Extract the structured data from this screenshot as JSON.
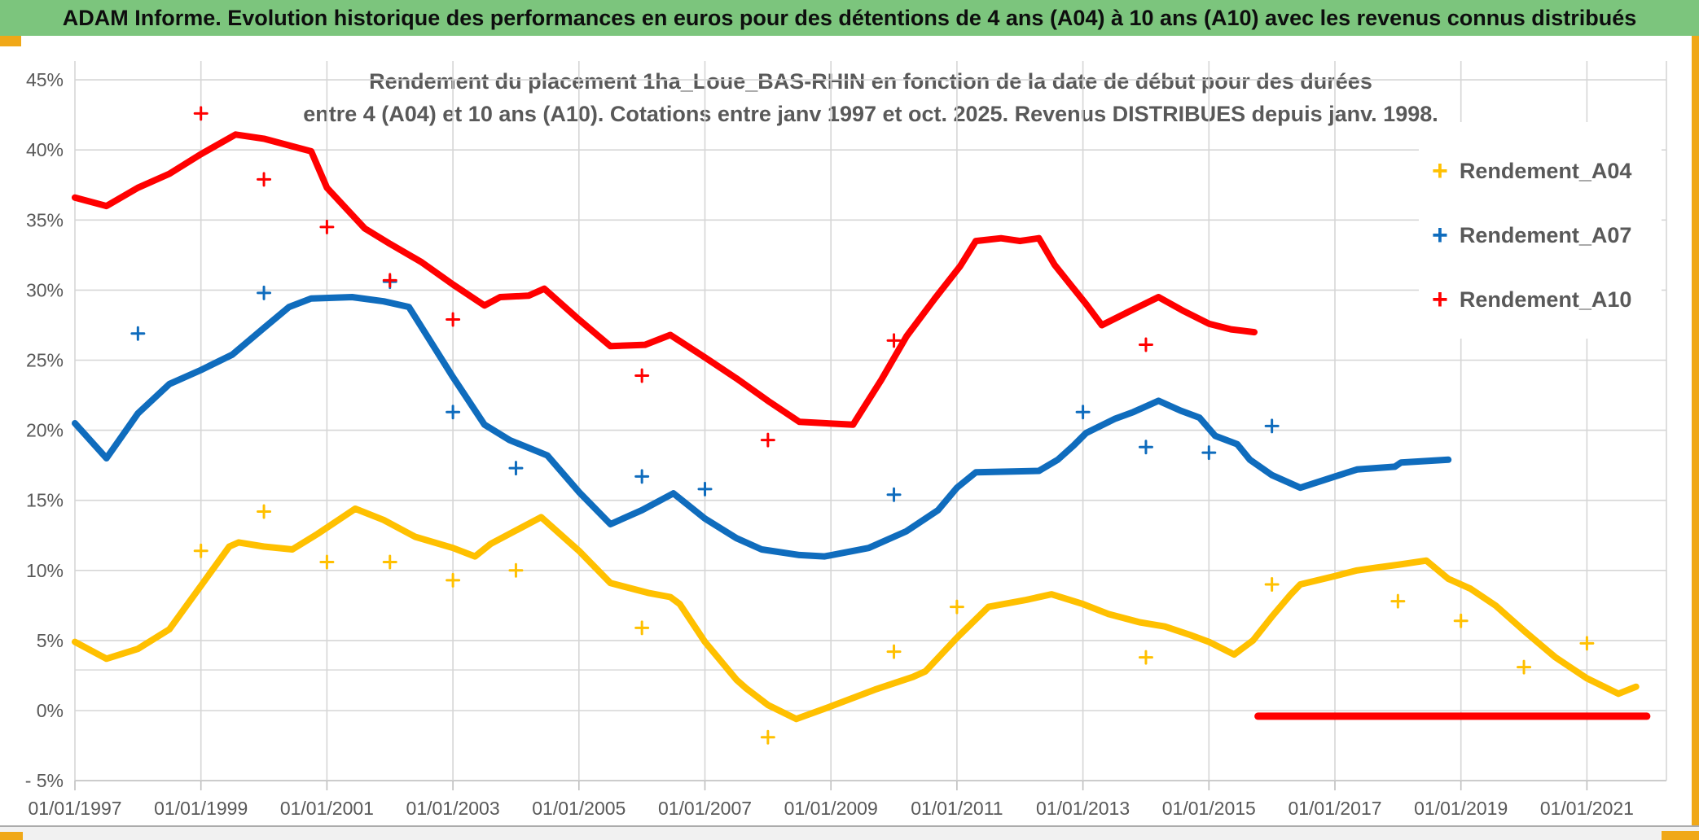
{
  "header": {
    "title": "ADAM Informe. Evolution historique des performances en euros pour des détentions de 4 ans (A04) à 10 ans (A10) avec les revenus connus distribués",
    "bg_color": "#7cc57d",
    "text_color": "#0e0e0e"
  },
  "frame": {
    "gold_color": "#f0a818"
  },
  "chart_data": {
    "type": "scatter",
    "title_line1": "Rendement du placement 1ha_Loue_BAS-RHIN en fonction de la date de début pour des durées",
    "title_line2": "entre 4 (A04) et 10 ans (A10). Cotations entre janv 1997 et oct. 2025. Revenus DISTRIBUES depuis janv. 1998.",
    "text_color": "#595959",
    "gridline_color": "#d6d6d6",
    "axis_line_color": "#bfbfbf",
    "x_axis": {
      "tick_years": [
        1997,
        1999,
        2001,
        2003,
        2005,
        2007,
        2009,
        2011,
        2013,
        2015,
        2017,
        2019,
        2021
      ],
      "tick_labels": [
        "01/01/1997",
        "01/01/1999",
        "01/01/2001",
        "01/01/2003",
        "01/01/2005",
        "01/01/2007",
        "01/01/2009",
        "01/01/2011",
        "01/01/2013",
        "01/01/2015",
        "01/01/2017",
        "01/01/2019",
        "01/01/2021"
      ],
      "min": 1997.0,
      "max": 2022.3
    },
    "y_axis": {
      "min": -5,
      "max": 45,
      "step": 5,
      "ticks": [
        {
          "v": 45,
          "label": "45%"
        },
        {
          "v": 40,
          "label": "40%"
        },
        {
          "v": 35,
          "label": "35%"
        },
        {
          "v": 30,
          "label": "30%"
        },
        {
          "v": 25,
          "label": "25%"
        },
        {
          "v": 20,
          "label": "20%"
        },
        {
          "v": 15,
          "label": "15%"
        },
        {
          "v": 10,
          "label": "10%"
        },
        {
          "v": 5,
          "label": "5%"
        },
        {
          "v": 0,
          "label": "0%"
        },
        {
          "v": -5,
          "label": "- 5%"
        }
      ]
    },
    "reference_line_v": 2.9,
    "legend": [
      {
        "label": "Rendement_A04",
        "color": "#ffc000"
      },
      {
        "label": "Rendement_A07",
        "color": "#0f6cbd"
      },
      {
        "label": "Rendement_A10",
        "color": "#ff0000"
      }
    ],
    "series": [
      {
        "name": "Rendement_A04",
        "color": "#ffc000",
        "points": [
          [
            1997.0,
            4.9
          ],
          [
            1997.5,
            3.7
          ],
          [
            1998.0,
            4.4
          ],
          [
            1998.5,
            5.8
          ],
          [
            1999.0,
            8.9
          ],
          [
            1999.45,
            11.7
          ],
          [
            1999.6,
            12.0
          ],
          [
            2000.0,
            11.7
          ],
          [
            2000.45,
            11.5
          ],
          [
            2000.85,
            12.6
          ],
          [
            2001.45,
            14.4
          ],
          [
            2001.9,
            13.6
          ],
          [
            2002.4,
            12.4
          ],
          [
            2003.0,
            11.6
          ],
          [
            2003.35,
            11.0
          ],
          [
            2003.6,
            11.9
          ],
          [
            2004.4,
            13.8
          ],
          [
            2005.0,
            11.4
          ],
          [
            2005.5,
            9.1
          ],
          [
            2006.1,
            8.4
          ],
          [
            2006.45,
            8.1
          ],
          [
            2006.6,
            7.6
          ],
          [
            2007.0,
            4.9
          ],
          [
            2007.5,
            2.2
          ],
          [
            2007.65,
            1.6
          ],
          [
            2008.0,
            0.4
          ],
          [
            2008.45,
            -0.6
          ],
          [
            2009.0,
            0.3
          ],
          [
            2009.7,
            1.5
          ],
          [
            2010.3,
            2.4
          ],
          [
            2010.5,
            2.8
          ],
          [
            2011.0,
            5.2
          ],
          [
            2011.5,
            7.4
          ],
          [
            2012.1,
            7.9
          ],
          [
            2012.5,
            8.3
          ],
          [
            2013.0,
            7.6
          ],
          [
            2013.4,
            6.9
          ],
          [
            2013.9,
            6.3
          ],
          [
            2014.3,
            6.0
          ],
          [
            2014.7,
            5.4
          ],
          [
            2015.0,
            4.9
          ],
          [
            2015.4,
            4.0
          ],
          [
            2015.7,
            5.0
          ],
          [
            2016.0,
            6.7
          ],
          [
            2016.3,
            8.3
          ],
          [
            2016.45,
            9.0
          ],
          [
            2017.0,
            9.6
          ],
          [
            2017.35,
            10.0
          ],
          [
            2017.65,
            10.2
          ],
          [
            2018.0,
            10.4
          ],
          [
            2018.45,
            10.7
          ],
          [
            2018.8,
            9.4
          ],
          [
            2019.15,
            8.7
          ],
          [
            2019.55,
            7.5
          ],
          [
            2020.0,
            5.7
          ],
          [
            2020.5,
            3.8
          ],
          [
            2021.0,
            2.3
          ],
          [
            2021.5,
            1.2
          ],
          [
            2021.78,
            1.7
          ]
        ],
        "outliers": [
          [
            1999,
            11.4
          ],
          [
            2000,
            14.2
          ],
          [
            2001,
            10.6
          ],
          [
            2002,
            10.6
          ],
          [
            2003,
            9.3
          ],
          [
            2004,
            10.0
          ],
          [
            2006,
            5.9
          ],
          [
            2008,
            -1.9
          ],
          [
            2010,
            4.2
          ],
          [
            2011,
            7.4
          ],
          [
            2014,
            3.8
          ],
          [
            2016,
            9.0
          ],
          [
            2018,
            7.8
          ],
          [
            2019,
            6.4
          ],
          [
            2020,
            3.1
          ],
          [
            2021,
            4.8
          ]
        ]
      },
      {
        "name": "Rendement_A07",
        "color": "#0f6cbd",
        "points": [
          [
            1997.0,
            20.5
          ],
          [
            1997.5,
            18.0
          ],
          [
            1998.0,
            21.2
          ],
          [
            1998.5,
            23.3
          ],
          [
            1999.0,
            24.3
          ],
          [
            1999.5,
            25.4
          ],
          [
            2000.0,
            27.3
          ],
          [
            2000.4,
            28.8
          ],
          [
            2000.75,
            29.4
          ],
          [
            2001.4,
            29.5
          ],
          [
            2001.9,
            29.2
          ],
          [
            2002.3,
            28.8
          ],
          [
            2003.0,
            23.8
          ],
          [
            2003.5,
            20.4
          ],
          [
            2003.9,
            19.3
          ],
          [
            2004.5,
            18.2
          ],
          [
            2005.0,
            15.6
          ],
          [
            2005.5,
            13.3
          ],
          [
            2006.0,
            14.3
          ],
          [
            2006.5,
            15.5
          ],
          [
            2007.0,
            13.7
          ],
          [
            2007.5,
            12.3
          ],
          [
            2007.9,
            11.5
          ],
          [
            2008.5,
            11.1
          ],
          [
            2008.9,
            11.0
          ],
          [
            2009.6,
            11.6
          ],
          [
            2010.2,
            12.8
          ],
          [
            2010.7,
            14.3
          ],
          [
            2011.0,
            15.9
          ],
          [
            2011.3,
            17.0
          ],
          [
            2012.3,
            17.1
          ],
          [
            2012.6,
            17.9
          ],
          [
            2012.85,
            18.9
          ],
          [
            2013.05,
            19.8
          ],
          [
            2013.5,
            20.8
          ],
          [
            2013.8,
            21.3
          ],
          [
            2014.2,
            22.1
          ],
          [
            2014.55,
            21.4
          ],
          [
            2014.85,
            20.9
          ],
          [
            2015.1,
            19.6
          ],
          [
            2015.45,
            19.0
          ],
          [
            2015.65,
            17.9
          ],
          [
            2016.0,
            16.8
          ],
          [
            2016.45,
            15.9
          ],
          [
            2017.0,
            16.7
          ],
          [
            2017.35,
            17.2
          ],
          [
            2017.95,
            17.4
          ],
          [
            2018.05,
            17.7
          ],
          [
            2018.8,
            17.9
          ]
        ],
        "outliers": [
          [
            1998,
            26.9
          ],
          [
            2000,
            29.8
          ],
          [
            2002,
            30.6
          ],
          [
            2003,
            21.3
          ],
          [
            2004,
            17.3
          ],
          [
            2006,
            16.7
          ],
          [
            2007,
            15.8
          ],
          [
            2010,
            15.4
          ],
          [
            2013,
            21.3
          ],
          [
            2014,
            18.8
          ],
          [
            2015,
            18.4
          ],
          [
            2016,
            20.3
          ]
        ]
      },
      {
        "name": "Rendement_A10",
        "color": "#ff0000",
        "points": [
          [
            1997.0,
            36.6
          ],
          [
            1997.5,
            36.0
          ],
          [
            1998.0,
            37.3
          ],
          [
            1998.5,
            38.3
          ],
          [
            1999.0,
            39.7
          ],
          [
            1999.55,
            41.1
          ],
          [
            2000.0,
            40.8
          ],
          [
            2000.5,
            40.2
          ],
          [
            2000.75,
            39.9
          ],
          [
            2001.0,
            37.3
          ],
          [
            2001.6,
            34.4
          ],
          [
            2002.0,
            33.3
          ],
          [
            2002.5,
            32.0
          ],
          [
            2003.0,
            30.4
          ],
          [
            2003.5,
            28.9
          ],
          [
            2003.75,
            29.5
          ],
          [
            2004.2,
            29.6
          ],
          [
            2004.45,
            30.1
          ],
          [
            2005.0,
            27.9
          ],
          [
            2005.5,
            26.0
          ],
          [
            2006.05,
            26.1
          ],
          [
            2006.45,
            26.8
          ],
          [
            2007.0,
            25.2
          ],
          [
            2007.5,
            23.7
          ],
          [
            2008.0,
            22.1
          ],
          [
            2008.5,
            20.6
          ],
          [
            2009.35,
            20.4
          ],
          [
            2009.8,
            23.6
          ],
          [
            2010.2,
            26.7
          ],
          [
            2010.65,
            29.4
          ],
          [
            2011.05,
            31.7
          ],
          [
            2011.3,
            33.5
          ],
          [
            2011.7,
            33.7
          ],
          [
            2012.0,
            33.5
          ],
          [
            2012.3,
            33.7
          ],
          [
            2012.55,
            31.8
          ],
          [
            2012.8,
            30.4
          ],
          [
            2013.05,
            29.0
          ],
          [
            2013.3,
            27.5
          ],
          [
            2013.7,
            28.4
          ],
          [
            2014.2,
            29.5
          ],
          [
            2014.6,
            28.5
          ],
          [
            2015.0,
            27.6
          ],
          [
            2015.35,
            27.2
          ],
          [
            2015.72,
            27.0
          ]
        ],
        "zero_segment": [
          [
            2015.78,
            -0.4
          ],
          [
            2021.95,
            -0.4
          ]
        ],
        "outliers": [
          [
            1999,
            42.6
          ],
          [
            2000,
            37.9
          ],
          [
            2001,
            34.5
          ],
          [
            2002,
            30.7
          ],
          [
            2003,
            27.9
          ],
          [
            2006,
            23.9
          ],
          [
            2008,
            19.3
          ],
          [
            2010,
            26.4
          ],
          [
            2014,
            26.1
          ]
        ]
      }
    ]
  }
}
